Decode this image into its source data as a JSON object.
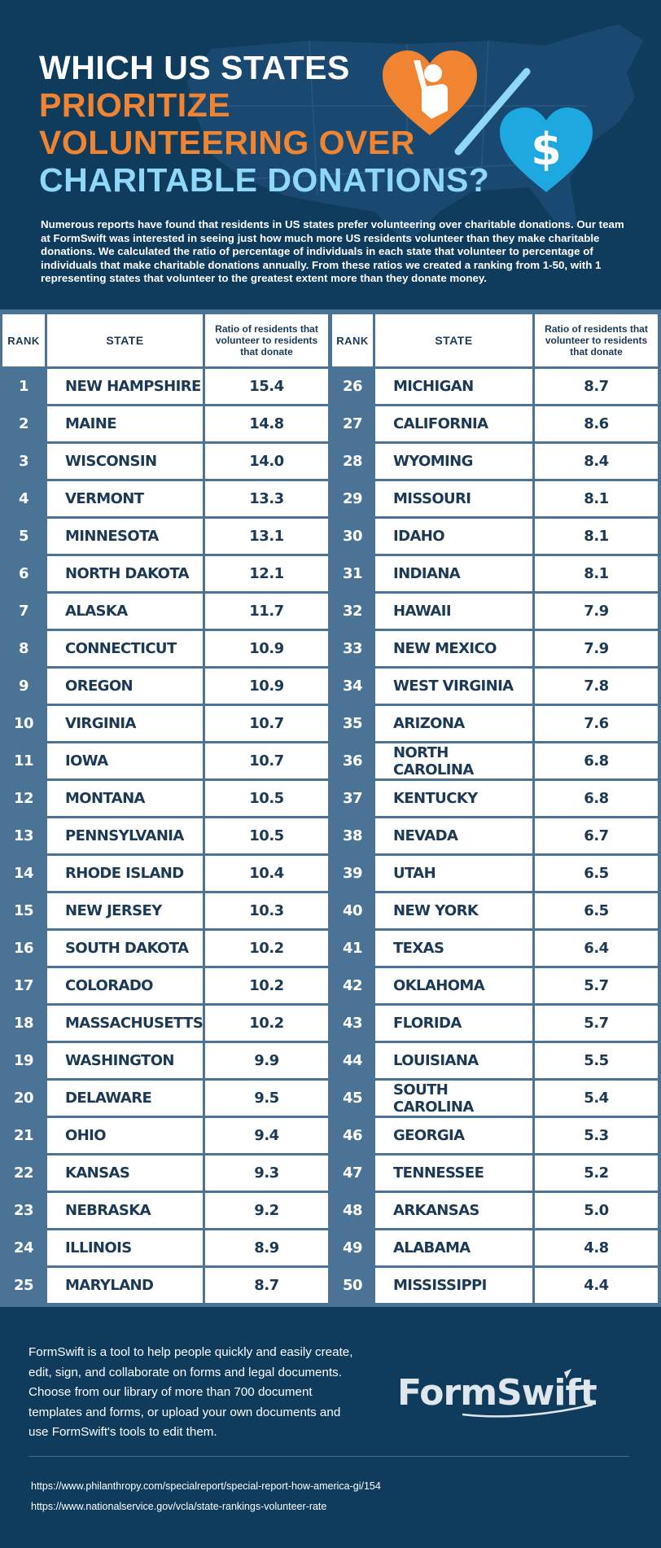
{
  "header": {
    "title_line1": "WHICH US STATES",
    "title_line2": "PRIORITIZE",
    "title_line3": "VOLUNTEERING OVER",
    "title_line4": "CHARITABLE DONATIONS?",
    "intro": "Numerous reports have found that residents in US states prefer volunteering over charitable donations. Our team at FormSwift was interested in seeing just how much more US residents volunteer than they make charitable donations. We calculated the ratio of percentage of individuals in each state that volunteer to percentage of individuals that make charitable donations annually. From these ratios we created a ranking from 1-50, with 1 representing states that volunteer to the greatest extent more than they donate money.",
    "dollar_sign": "$"
  },
  "table": {
    "rank_header": "RANK",
    "state_header": "STATE",
    "ratio_header": "Ratio of residents that volunteer to residents that donate",
    "left": [
      {
        "rank": "1",
        "state": "NEW HAMPSHIRE",
        "ratio": "15.4"
      },
      {
        "rank": "2",
        "state": "MAINE",
        "ratio": "14.8"
      },
      {
        "rank": "3",
        "state": "WISCONSIN",
        "ratio": "14.0"
      },
      {
        "rank": "4",
        "state": "VERMONT",
        "ratio": "13.3"
      },
      {
        "rank": "5",
        "state": "MINNESOTA",
        "ratio": "13.1"
      },
      {
        "rank": "6",
        "state": "NORTH DAKOTA",
        "ratio": "12.1"
      },
      {
        "rank": "7",
        "state": "ALASKA",
        "ratio": "11.7"
      },
      {
        "rank": "8",
        "state": "CONNECTICUT",
        "ratio": "10.9"
      },
      {
        "rank": "9",
        "state": "OREGON",
        "ratio": "10.9"
      },
      {
        "rank": "10",
        "state": "VIRGINIA",
        "ratio": "10.7"
      },
      {
        "rank": "11",
        "state": "IOWA",
        "ratio": "10.7"
      },
      {
        "rank": "12",
        "state": "MONTANA",
        "ratio": "10.5"
      },
      {
        "rank": "13",
        "state": "PENNSYLVANIA",
        "ratio": "10.5"
      },
      {
        "rank": "14",
        "state": "RHODE ISLAND",
        "ratio": "10.4"
      },
      {
        "rank": "15",
        "state": "NEW JERSEY",
        "ratio": "10.3"
      },
      {
        "rank": "16",
        "state": "SOUTH DAKOTA",
        "ratio": "10.2"
      },
      {
        "rank": "17",
        "state": "COLORADO",
        "ratio": "10.2"
      },
      {
        "rank": "18",
        "state": "MASSACHUSETTS",
        "ratio": "10.2"
      },
      {
        "rank": "19",
        "state": "WASHINGTON",
        "ratio": "9.9"
      },
      {
        "rank": "20",
        "state": "DELAWARE",
        "ratio": "9.5"
      },
      {
        "rank": "21",
        "state": "OHIO",
        "ratio": "9.4"
      },
      {
        "rank": "22",
        "state": "KANSAS",
        "ratio": "9.3"
      },
      {
        "rank": "23",
        "state": "NEBRASKA",
        "ratio": "9.2"
      },
      {
        "rank": "24",
        "state": "ILLINOIS",
        "ratio": "8.9"
      },
      {
        "rank": "25",
        "state": "MARYLAND",
        "ratio": "8.7"
      }
    ],
    "right": [
      {
        "rank": "26",
        "state": "MICHIGAN",
        "ratio": "8.7"
      },
      {
        "rank": "27",
        "state": "CALIFORNIA",
        "ratio": "8.6"
      },
      {
        "rank": "28",
        "state": "WYOMING",
        "ratio": "8.4"
      },
      {
        "rank": "29",
        "state": "MISSOURI",
        "ratio": "8.1"
      },
      {
        "rank": "30",
        "state": "IDAHO",
        "ratio": "8.1"
      },
      {
        "rank": "31",
        "state": "INDIANA",
        "ratio": "8.1"
      },
      {
        "rank": "32",
        "state": "HAWAII",
        "ratio": "7.9"
      },
      {
        "rank": "33",
        "state": "NEW MEXICO",
        "ratio": "7.9"
      },
      {
        "rank": "34",
        "state": "WEST VIRGINIA",
        "ratio": "7.8"
      },
      {
        "rank": "35",
        "state": "ARIZONA",
        "ratio": "7.6"
      },
      {
        "rank": "36",
        "state": "NORTH CAROLINA",
        "ratio": "6.8"
      },
      {
        "rank": "37",
        "state": "KENTUCKY",
        "ratio": "6.8"
      },
      {
        "rank": "38",
        "state": "NEVADA",
        "ratio": "6.7"
      },
      {
        "rank": "39",
        "state": "UTAH",
        "ratio": "6.5"
      },
      {
        "rank": "40",
        "state": "NEW YORK",
        "ratio": "6.5"
      },
      {
        "rank": "41",
        "state": "TEXAS",
        "ratio": "6.4"
      },
      {
        "rank": "42",
        "state": "OKLAHOMA",
        "ratio": "5.7"
      },
      {
        "rank": "43",
        "state": "FLORIDA",
        "ratio": "5.7"
      },
      {
        "rank": "44",
        "state": "LOUISIANA",
        "ratio": "5.5"
      },
      {
        "rank": "45",
        "state": "SOUTH CAROLINA",
        "ratio": "5.4"
      },
      {
        "rank": "46",
        "state": "GEORGIA",
        "ratio": "5.3"
      },
      {
        "rank": "47",
        "state": "TENNESSEE",
        "ratio": "5.2"
      },
      {
        "rank": "48",
        "state": "ARKANSAS",
        "ratio": "5.0"
      },
      {
        "rank": "49",
        "state": "ALABAMA",
        "ratio": "4.8"
      },
      {
        "rank": "50",
        "state": "MISSISSIPPI",
        "ratio": "4.4"
      }
    ]
  },
  "footer": {
    "description": "FormSwift is a tool to help people quickly and easily create, edit, sign, and collaborate on forms and legal documents. Choose from our library of more than 700 document templates and forms, or upload your own documents and use FormSwift's tools to edit them.",
    "logo_text": "FormSwift",
    "source1": "https://www.philanthropy.com/specialreport/special-report-how-america-gi/154",
    "source2": "https://www.nationalservice.gov/vcla/state-rankings-volunteer-rate"
  },
  "colors": {
    "background": "#0f3b5c",
    "table_bg": "#4a7396",
    "orange": "#f08430",
    "light_blue": "#8fd8f7",
    "heart_blue": "#1ea8e0",
    "cell_text": "#1c3a55"
  },
  "icons": [
    "us-map-icon",
    "volunteer-heart-icon",
    "slash-divider-icon",
    "donation-heart-icon"
  ]
}
